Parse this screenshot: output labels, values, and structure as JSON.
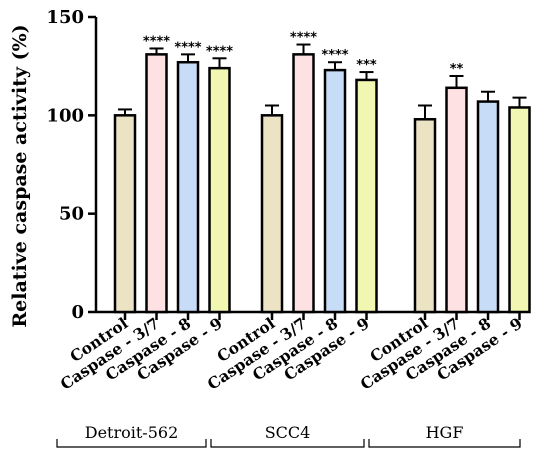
{
  "chart_data": {
    "type": "bar",
    "title": "",
    "ylabel": "Relative caspase activity (%)",
    "xlabel": "",
    "ylim": [
      0,
      150
    ],
    "yticks": [
      0,
      50,
      100,
      150
    ],
    "categories": [
      "Control",
      "Caspase - 3/7",
      "Caspase - 8",
      "Caspase - 9"
    ],
    "category_colors": [
      "#ece3c5",
      "#fde1e3",
      "#c7dcf6",
      "#f1f6b3"
    ],
    "groups": [
      {
        "name": "Detroit-562",
        "values": [
          100,
          131,
          127,
          124
        ],
        "errors": [
          3,
          3,
          4,
          5
        ],
        "significance": [
          "",
          "****",
          "****",
          "****"
        ]
      },
      {
        "name": "SCC4",
        "values": [
          100,
          131,
          123,
          118
        ],
        "errors": [
          5,
          5,
          4,
          4
        ],
        "significance": [
          "",
          "****",
          "****",
          "***"
        ]
      },
      {
        "name": "HGF",
        "values": [
          98,
          114,
          107,
          104
        ],
        "errors": [
          7,
          6,
          5,
          5
        ],
        "significance": [
          "",
          "**",
          "",
          ""
        ]
      }
    ]
  }
}
